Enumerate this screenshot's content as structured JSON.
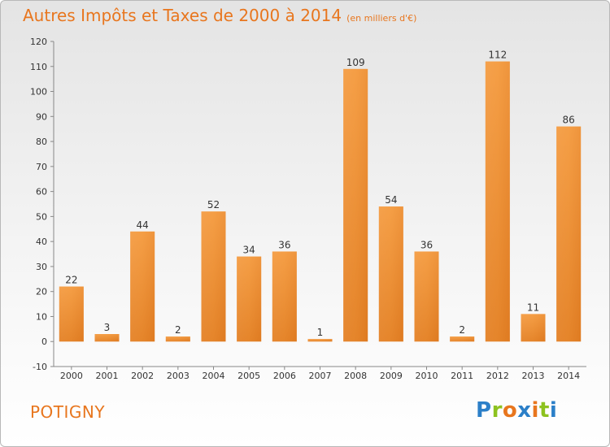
{
  "title": {
    "main": "Autres Impôts et Taxes de 2000 à 2014",
    "unit": "(en milliers d'€)"
  },
  "commune": "POTIGNY",
  "logo": {
    "letters": [
      "P",
      "r",
      "o",
      "x",
      "i",
      "t",
      "i"
    ],
    "colors": [
      "#2b7fc8",
      "#8dc21f",
      "#e8761e",
      "#2b7fc8",
      "#e8761e",
      "#8dc21f",
      "#2b7fc8"
    ]
  },
  "chart_data": {
    "type": "bar",
    "title": "Autres Impôts et Taxes de 2000 à 2014",
    "subtitle": "(en milliers d'€)",
    "categories": [
      "2000",
      "2001",
      "2002",
      "2003",
      "2004",
      "2005",
      "2006",
      "2007",
      "2008",
      "2009",
      "2010",
      "2011",
      "2012",
      "2013",
      "2014"
    ],
    "values": [
      22,
      3,
      44,
      2,
      52,
      34,
      36,
      1,
      109,
      54,
      36,
      2,
      112,
      11,
      86
    ],
    "ylim": [
      -10,
      120
    ],
    "yticks": [
      -10,
      0,
      10,
      20,
      30,
      40,
      50,
      60,
      70,
      80,
      90,
      100,
      110,
      120
    ],
    "grid": false,
    "legend": "none",
    "bar_color": "#f0902e"
  }
}
